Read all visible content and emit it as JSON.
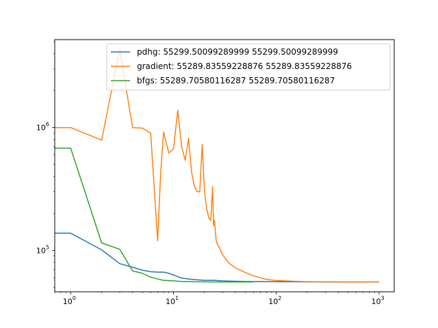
{
  "chart_data": {
    "type": "line",
    "title": "",
    "xlabel": "",
    "ylabel": "",
    "xscale": "log",
    "yscale": "log",
    "xlim": [
      0.7,
      1400
    ],
    "ylim": [
      46000,
      5200000
    ],
    "grid": false,
    "legend_position": "top-right",
    "x_ticks": [
      {
        "value": 1,
        "label": "10",
        "exp": "0"
      },
      {
        "value": 10,
        "label": "10",
        "exp": "1"
      },
      {
        "value": 100,
        "label": "10",
        "exp": "2"
      },
      {
        "value": 1000,
        "label": "10",
        "exp": "3"
      }
    ],
    "y_ticks": [
      {
        "value": 100000,
        "label": "10",
        "exp": "5"
      },
      {
        "value": 1000000,
        "label": "10",
        "exp": "6"
      }
    ],
    "series": [
      {
        "name": "pdhg: 55299.50099289999 55299.50099289999",
        "color": "#1f77b4",
        "x": [
          0.7,
          1,
          2,
          3,
          4,
          5,
          6,
          7,
          8,
          9,
          10,
          12,
          15,
          20,
          25,
          30,
          40,
          60,
          100,
          200,
          500,
          1000
        ],
        "y": [
          138000,
          138000,
          101000,
          78000,
          73000,
          69000,
          67000,
          66500,
          66500,
          65000,
          63000,
          59500,
          58000,
          57000,
          57000,
          56500,
          56000,
          55700,
          55600,
          55400,
          55350,
          55300
        ]
      },
      {
        "name": "gradient: 55289.83559228876 55289.83559228876",
        "color": "#ff7f0e",
        "x": [
          0.7,
          1,
          2,
          3,
          4,
          5,
          6,
          7,
          7.5,
          8,
          9,
          10,
          11,
          12,
          13,
          14,
          15,
          16,
          17,
          18,
          19,
          20,
          21,
          22,
          23,
          24,
          24.5,
          25,
          26,
          27,
          28,
          30,
          35,
          40,
          50,
          60,
          80,
          100,
          150,
          200,
          300,
          500,
          700,
          1000
        ],
        "y": [
          1000000,
          1000000,
          790000,
          4300000,
          1000000,
          990000,
          900000,
          120000,
          430000,
          920000,
          620000,
          670000,
          1380000,
          700000,
          540000,
          820000,
          430000,
          330000,
          300000,
          300000,
          730000,
          300000,
          220000,
          185000,
          175000,
          330000,
          160000,
          175000,
          120000,
          110000,
          105000,
          92000,
          78000,
          72000,
          66000,
          62000,
          58000,
          56800,
          56000,
          55600,
          55400,
          55300,
          55290,
          55290
        ]
      },
      {
        "name": "bfgs: 55289.70580116287 55289.70580116287",
        "color": "#2ca02c",
        "x": [
          0.7,
          1,
          2,
          3,
          4,
          5,
          6,
          7,
          8,
          10,
          12,
          15,
          20,
          30,
          40,
          60
        ],
        "y": [
          680000,
          680000,
          115000,
          102000,
          68000,
          65000,
          60500,
          58500,
          57000,
          56500,
          55800,
          55600,
          55400,
          55300,
          55290,
          55290
        ]
      }
    ]
  }
}
